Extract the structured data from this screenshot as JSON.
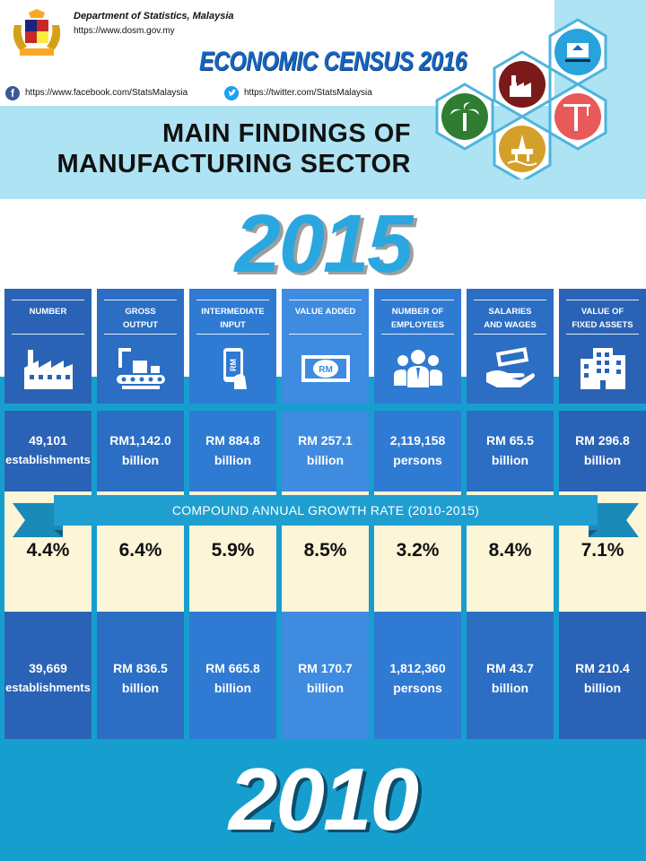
{
  "header": {
    "department": "Department of Statistics, Malaysia",
    "website": "https://www.dosm.gov.my",
    "census_title": "ECONOMIC CENSUS 2016",
    "facebook_url": "https://www.facebook.com/StatsMalaysia",
    "twitter_url": "https://twitter.com/StatsMalaysia",
    "main_title_line1": "MAIN FINDINGS OF",
    "main_title_line2": "MANUFACTURING SECTOR"
  },
  "year_top": "2015",
  "year_bottom": "2010",
  "cagr_label": "COMPOUND ANNUAL GROWTH RATE (2010-2015)",
  "columns": [
    {
      "label1": "NUMBER",
      "label2": "",
      "icon": "factory-icon",
      "color": "#2a63b5",
      "v2015_a": "49,101",
      "v2015_b": "establishments",
      "cagr": "4.4%",
      "v2010_a": "39,669",
      "v2010_b": "establishments"
    },
    {
      "label1": "GROSS",
      "label2": "OUTPUT",
      "icon": "conveyor-icon",
      "color": "#2b6ec4",
      "v2015_a": "RM1,142.0",
      "v2015_b": "billion",
      "cagr": "6.4%",
      "v2010_a": "RM 836.5",
      "v2010_b": "billion"
    },
    {
      "label1": "INTERMEDIATE",
      "label2": "INPUT",
      "icon": "phone-rm-icon",
      "color": "#2f7ad3",
      "v2015_a": "RM 884.8",
      "v2015_b": "billion",
      "cagr": "5.9%",
      "v2010_a": "RM 665.8",
      "v2010_b": "billion"
    },
    {
      "label1": "VALUE ADDED",
      "label2": "",
      "icon": "banknote-icon",
      "color": "#3e8be0",
      "v2015_a": "RM 257.1",
      "v2015_b": "billion",
      "cagr": "8.5%",
      "v2010_a": "RM 170.7",
      "v2010_b": "billion"
    },
    {
      "label1": "NUMBER OF",
      "label2": "EMPLOYEES",
      "icon": "people-icon",
      "color": "#2f7ad3",
      "v2015_a": "2,119,158",
      "v2015_b": "persons",
      "cagr": "3.2%",
      "v2010_a": "1,812,360",
      "v2010_b": "persons"
    },
    {
      "label1": "SALARIES",
      "label2": "AND WAGES",
      "icon": "hand-money-icon",
      "color": "#2b6ec4",
      "v2015_a": "RM 65.5",
      "v2015_b": "billion",
      "cagr": "8.4%",
      "v2010_a": "RM 43.7",
      "v2010_b": "billion"
    },
    {
      "label1": "VALUE OF",
      "label2": "FIXED ASSETS",
      "icon": "buildings-icon",
      "color": "#2a63b5",
      "v2015_a": "RM 296.8",
      "v2015_b": "billion",
      "cagr": "7.1%",
      "v2010_a": "RM 210.4",
      "v2010_b": "billion"
    }
  ]
}
